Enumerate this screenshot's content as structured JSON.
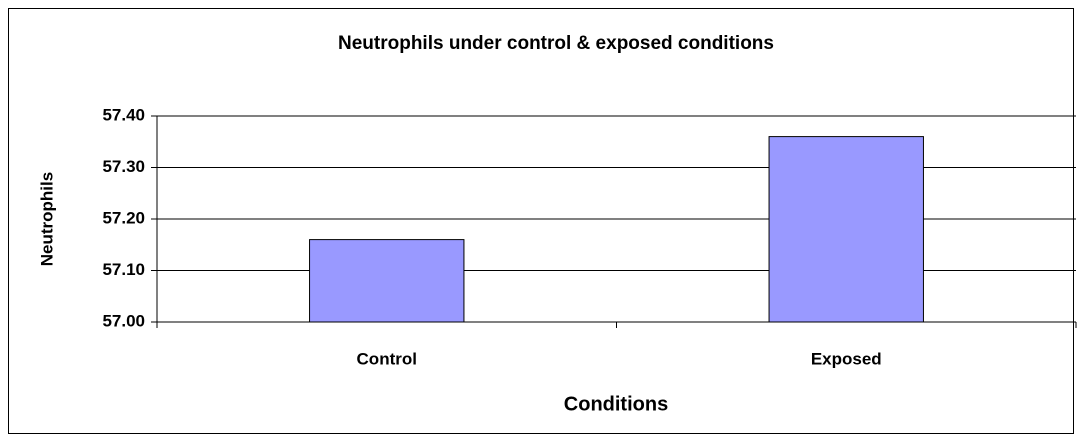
{
  "chart_data": {
    "type": "bar",
    "title": "Neutrophils under control & exposed conditions",
    "xlabel": "Conditions",
    "ylabel": "Neutrophils",
    "categories": [
      "Control",
      "Exposed"
    ],
    "values": [
      57.16,
      57.36
    ],
    "color": "#9999ff",
    "ylim": [
      57.0,
      57.4
    ],
    "yticks": [
      {
        "value": 57.0,
        "label": "57.00"
      },
      {
        "value": 57.1,
        "label": "57.10"
      },
      {
        "value": 57.2,
        "label": "57.20"
      },
      {
        "value": 57.3,
        "label": "57.30"
      },
      {
        "value": 57.4,
        "label": "57.40"
      }
    ],
    "grid": true
  }
}
